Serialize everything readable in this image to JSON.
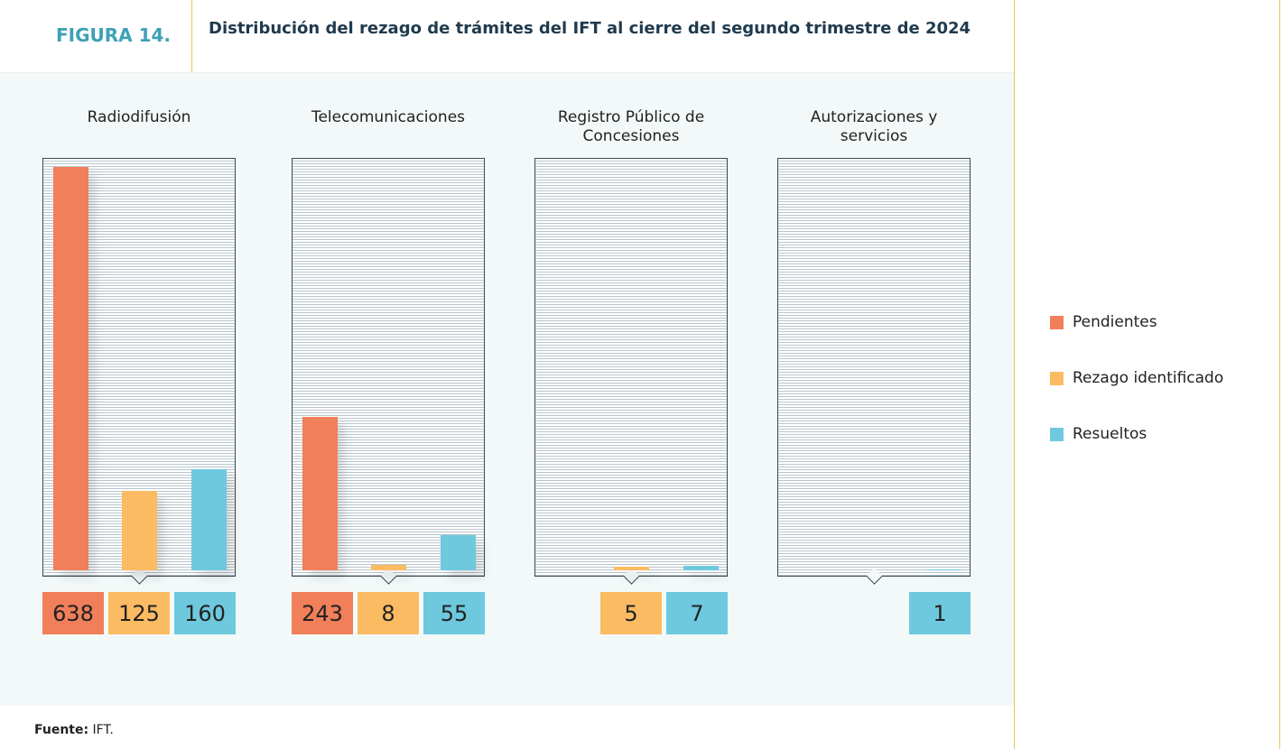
{
  "figure_label": "FIGURA 14.",
  "source_label": "Fuente:",
  "source_text": "IFT.",
  "chart_data": {
    "type": "bar",
    "title": "Distribución del rezago de trámites del IFT al cierre del segundo trimestre de 2024",
    "categories": [
      "Radiodifusión",
      "Telecomunicaciones",
      "Registro Público de Concesiones",
      "Autorizaciones y servicios"
    ],
    "series": [
      {
        "name": "Pendientes",
        "color": "#f07f5a",
        "values": [
          638,
          243,
          null,
          null
        ]
      },
      {
        "name": "Rezago identificado",
        "color": "#fbbb62",
        "values": [
          125,
          8,
          5,
          null
        ]
      },
      {
        "name": "Resueltos",
        "color": "#6ec9de",
        "values": [
          160,
          55,
          7,
          1
        ]
      }
    ]
  }
}
